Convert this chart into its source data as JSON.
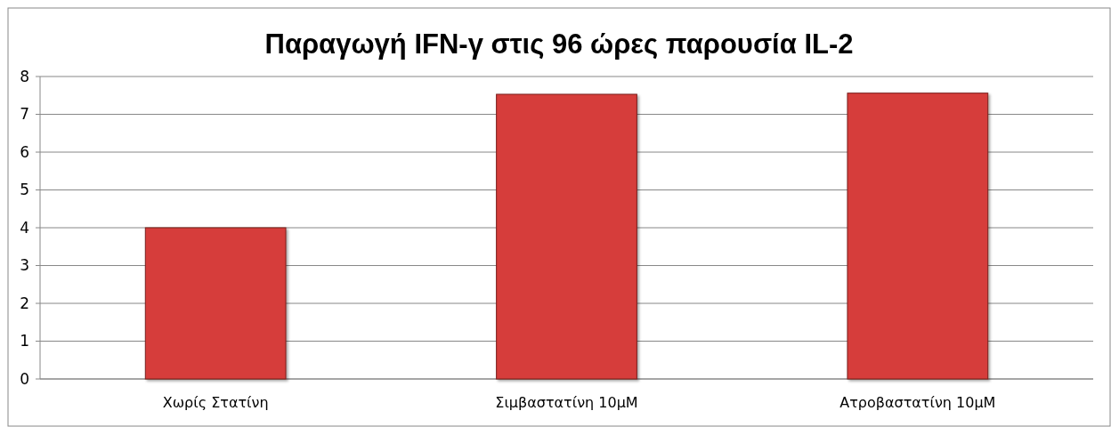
{
  "chart_data": {
    "type": "bar",
    "title": "Παραγωγή IFN-γ στις 96 ώρες παρουσία IL-2",
    "categories": [
      "Χωρίς Στατίνη",
      "Σιμβαστατίνη 10μΜ",
      "Ατροβαστατίνη 10μΜ"
    ],
    "values": [
      4.0,
      7.53,
      7.56
    ],
    "color": "#d63c3a",
    "ylim": [
      0,
      8
    ],
    "yticks": [
      0,
      1,
      2,
      3,
      4,
      5,
      6,
      7,
      8
    ],
    "grid": "y"
  }
}
